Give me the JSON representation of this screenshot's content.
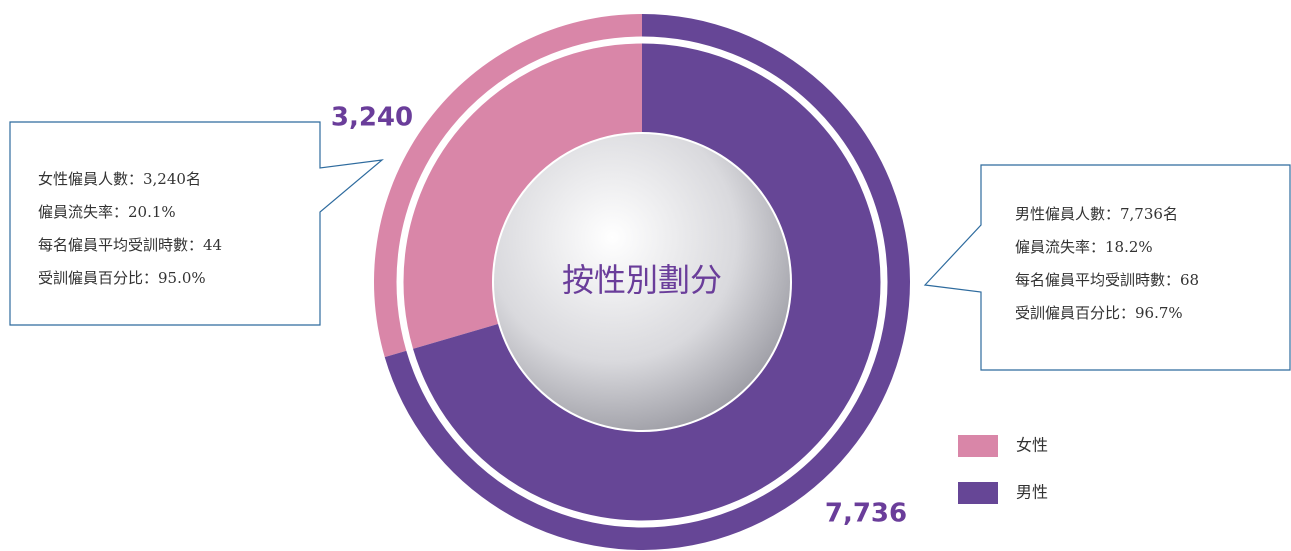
{
  "chart_data": {
    "type": "pie",
    "title": "按性別劃分",
    "categories": [
      "女性",
      "男性"
    ],
    "values": [
      3240,
      7736
    ],
    "value_labels": [
      "3,240",
      "7,736"
    ],
    "colors": [
      "#d986a8",
      "#664696"
    ],
    "annotations": [
      [
        "女性僱員人數：3,240名",
        "僱員流失率：20.1%",
        "每名僱員平均受訓時數：44",
        "受訓僱員百分比：95.0%"
      ],
      [
        "男性僱員人數：7,736名",
        "僱員流失率：18.2%",
        "每名僱員平均受訓時數：68",
        "受訓僱員百分比：96.7%"
      ]
    ]
  }
}
